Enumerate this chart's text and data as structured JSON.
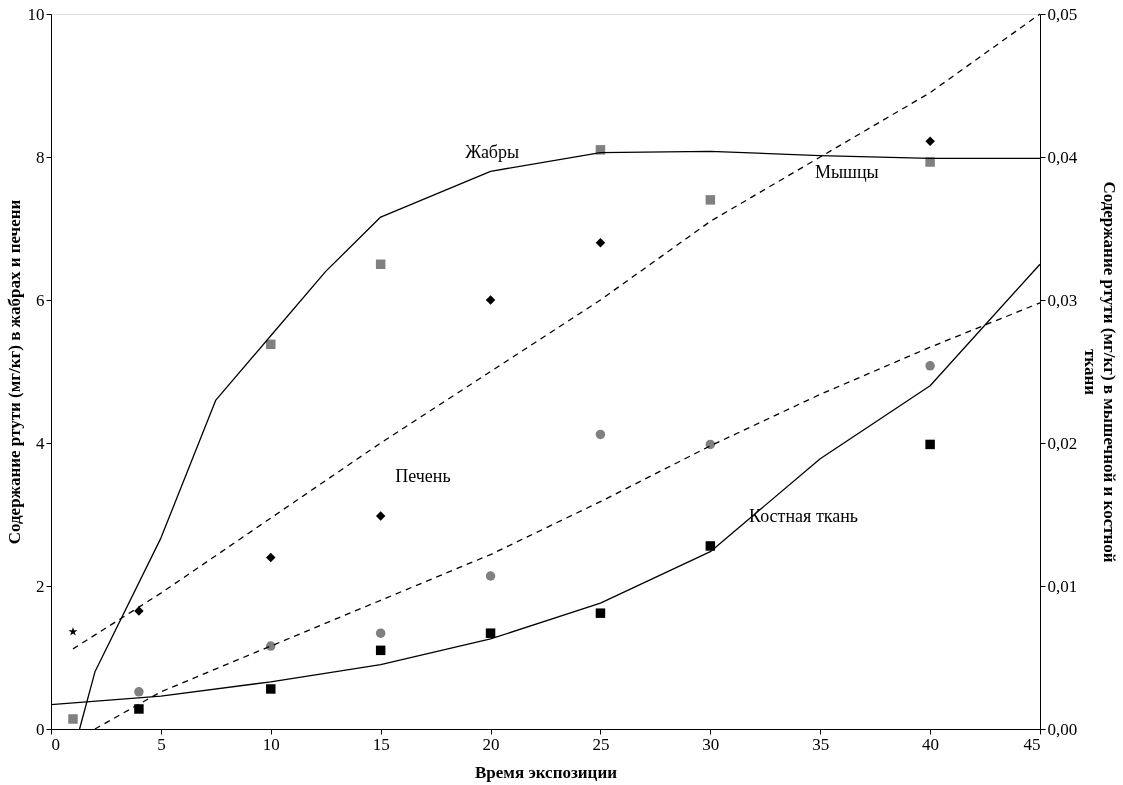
{
  "chart_data": {
    "type": "scatter",
    "xlabel": "Время экспозиции",
    "ylabel": "Содержание ртути (мг/кг) в жабрах и печени",
    "y2label": "Содержание ртути (мг/кг) в мышечной и костной ткани",
    "xlim": [
      0,
      45
    ],
    "xticks": [
      0,
      5,
      10,
      15,
      20,
      25,
      30,
      35,
      40,
      45
    ],
    "ylim": [
      0,
      10
    ],
    "yticks": [
      0,
      2,
      4,
      6,
      8,
      10
    ],
    "y2lim": [
      0,
      0.05
    ],
    "y2ticks": [
      {
        "value": 0,
        "label": "0,00"
      },
      {
        "value": 0.01,
        "label": "0,01"
      },
      {
        "value": 0.02,
        "label": "0,02"
      },
      {
        "value": 0.03,
        "label": "0,03"
      },
      {
        "value": 0.04,
        "label": "0,04"
      },
      {
        "value": 0.05,
        "label": "0,05"
      }
    ],
    "grid": false,
    "series": [
      {
        "type": "scatter",
        "marker": "square",
        "color": "#808080",
        "x": [
          1,
          10,
          15,
          25,
          30,
          40
        ],
        "values": [
          0.14,
          5.38,
          6.5,
          8.1,
          7.4,
          7.93
        ]
      },
      {
        "type": "scatter",
        "marker": "star",
        "color": "#000000",
        "x": [
          1
        ],
        "values": [
          1.36
        ]
      },
      {
        "type": "scatter",
        "marker": "diamond",
        "color": "#000000",
        "x": [
          4,
          10,
          15,
          20,
          25,
          40
        ],
        "values": [
          1.65,
          2.4,
          2.98,
          6.0,
          6.8,
          8.22
        ]
      },
      {
        "type": "scatter",
        "marker": "circle",
        "color": "#808080",
        "axis": "y2",
        "x": [
          4,
          10,
          15,
          20,
          25,
          30,
          40
        ],
        "values": [
          0.0026,
          0.0058,
          0.0067,
          0.0107,
          0.0206,
          0.0199,
          0.0254
        ]
      },
      {
        "type": "scatter",
        "marker": "square",
        "color": "#000000",
        "axis": "y2",
        "x": [
          4,
          10,
          15,
          20,
          25,
          30,
          40
        ],
        "values": [
          0.0014,
          0.0028,
          0.0055,
          0.0067,
          0.0081,
          0.0128,
          0.0199
        ]
      },
      {
        "type": "line",
        "line_style": "solid",
        "color": "#000000",
        "x": [
          1.3,
          2,
          5,
          7.5,
          10,
          12.5,
          15,
          20,
          25,
          30,
          35,
          40,
          45
        ],
        "values": [
          0,
          0.8,
          2.67,
          4.6,
          5.5,
          6.4,
          7.16,
          7.8,
          8.06,
          8.08,
          8.02,
          7.98,
          7.98
        ]
      },
      {
        "type": "line",
        "line_style": "dashed",
        "color": "#000000",
        "x": [
          1,
          5,
          10,
          15,
          20,
          25,
          30,
          35,
          40,
          45
        ],
        "values": [
          1.12,
          1.9,
          2.95,
          4.0,
          5.0,
          6.0,
          7.1,
          8.0,
          8.9,
          10.0
        ]
      },
      {
        "type": "line",
        "line_style": "dashed",
        "color": "#000000",
        "axis": "y2",
        "x": [
          2,
          5,
          10,
          15,
          20,
          25,
          30,
          35,
          40,
          45
        ],
        "values": [
          0,
          0.0026,
          0.0058,
          0.009,
          0.0122,
          0.0159,
          0.0198,
          0.0234,
          0.0267,
          0.0298
        ]
      },
      {
        "type": "line",
        "line_style": "solid",
        "color": "#000000",
        "axis": "y2",
        "x": [
          0,
          5,
          10,
          15,
          20,
          25,
          30,
          35,
          40,
          45
        ],
        "values": [
          0.0017,
          0.0023,
          0.0033,
          0.0045,
          0.0063,
          0.0088,
          0.0124,
          0.0189,
          0.024,
          0.0325
        ]
      }
    ],
    "annotations": [
      "Жабры",
      "Мышцы",
      "Печень",
      "Костная ткань"
    ]
  }
}
